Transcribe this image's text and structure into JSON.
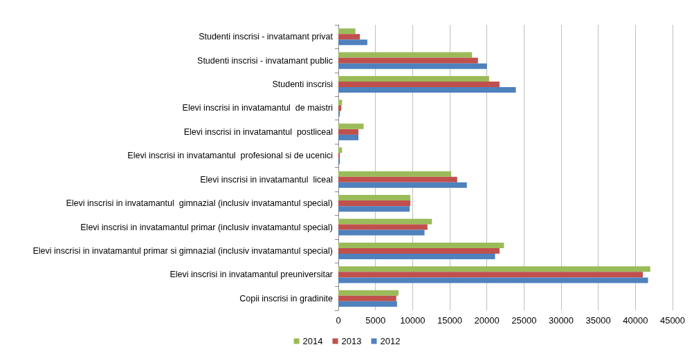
{
  "chart_data": {
    "type": "bar",
    "orientation": "horizontal",
    "categories": [
      "Studenti inscrisi - invatamant privat",
      "Studenti inscrisi - invatamant public",
      "Studenti inscrisi",
      "Elevi inscrisi in invatamantul  de maistri",
      "Elevi inscrisi in invatamantul  postliceal",
      "Elevi inscrisi in invatamantul  profesional si de ucenici",
      "Elevi inscrisi in invatamantul  liceal",
      "Elevi inscrisi in invatamantul  gimnazial (inclusiv invatamantul special)",
      "Elevi inscrisi in invatamantul primar (inclusiv invatamantul special)",
      "Elevi inscrisi in invatamantul primar si gimnazial (inclusiv invatamantul special)",
      "Elevi inscrisi in invatamantul preuniversitar",
      "Copii inscrisi in gradinite"
    ],
    "series": [
      {
        "name": "2014",
        "color": "#9bbb59",
        "values": [
          2300,
          18000,
          20300,
          500,
          3400,
          500,
          15200,
          9700,
          12600,
          22300,
          42000,
          8100
        ]
      },
      {
        "name": "2013",
        "color": "#c0504d",
        "values": [
          2900,
          18800,
          21700,
          400,
          2700,
          200,
          16000,
          9700,
          12000,
          21700,
          41000,
          7800
        ]
      },
      {
        "name": "2012",
        "color": "#4f81bd",
        "values": [
          3900,
          20000,
          23900,
          200,
          2700,
          200,
          17300,
          9600,
          11600,
          21100,
          41700,
          7900
        ]
      }
    ],
    "xlim": [
      0,
      45000
    ],
    "xticks": [
      0,
      5000,
      10000,
      15000,
      20000,
      25000,
      30000,
      35000,
      40000,
      45000
    ],
    "grid": "x",
    "legend": "bottom"
  }
}
